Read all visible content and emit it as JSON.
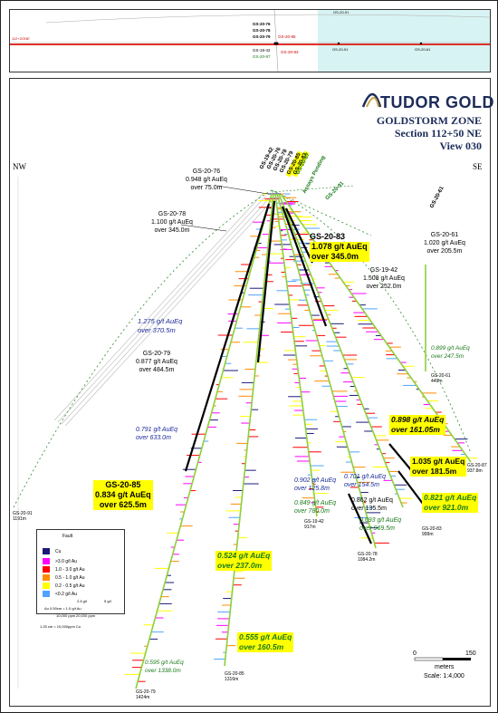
{
  "inset": {
    "zone_label": "112+ZONE",
    "top_label": "GS-20-91",
    "holes": [
      "GS-20-76",
      "GS-20-78",
      "GS-20-79",
      "GS-20-85",
      "GS-19-42",
      "GS-20-87",
      "GS-20-83",
      "GS-20-61"
    ],
    "right_holes": [
      "GS-20-91",
      "GS-20-61"
    ]
  },
  "company": "TUDOR GOLD",
  "zone": {
    "name": "GOLDSTORM ZONE",
    "section": "Section 112+50 NE",
    "view": "View 030"
  },
  "compass": {
    "left": "NW",
    "right": "SE"
  },
  "collar_labels": [
    "GS-19-42",
    "GS-20-76",
    "GS-20-78",
    "GS-20-79",
    "GS-20-85",
    "GS-20-83",
    "GS-20-87"
  ],
  "assays_pending": "Assays Pending",
  "hole_91_label": "GS-20-91",
  "intercepts": {
    "h76": {
      "hole": "GS-20-76",
      "grade": "0.948 g/t AuEq",
      "len": "over 75.0m"
    },
    "h78": {
      "hole": "GS-20-78",
      "grade": "1.100 g/t AuEq",
      "len": "over 345.0m"
    },
    "h83": {
      "hole": "GS-20-83",
      "grade": "1.078 g/t AuEq",
      "len": "over 345.0m"
    },
    "h61": {
      "hole": "GS-20-61",
      "grade": "1.020 g/t AuEq",
      "len": "over 205.5m"
    },
    "h42": {
      "hole": "GS-19-42",
      "grade": "1.508 g/t AuEq",
      "len": "over 252.0m"
    },
    "blue1": {
      "grade": "1.275 g/t AuEq",
      "len": "over 370.5m"
    },
    "h79": {
      "hole": "GS-20-79",
      "grade": "0.877 g/t AuEq",
      "len": "over 484.5m"
    },
    "green61": {
      "grade": "0.899 g/t AuEq",
      "len": "over 247.5m"
    },
    "blue2": {
      "grade": "0.791 g/t AuEq",
      "len": "over 633.0m"
    },
    "y1": {
      "grade": "0.898 g/t AuEq",
      "len": "over 161.05m"
    },
    "y2": {
      "grade": "1.035 g/t AuEq",
      "len": "over 181.5m"
    },
    "h85": {
      "hole": "GS-20-85",
      "grade": "0.834 g/t AuEq",
      "len": "over 625.5m"
    },
    "blue3": {
      "grade": "0.902 g/t AuEq",
      "len": "over 125.8m"
    },
    "blue4": {
      "grade": "0.701 g/t AuEq",
      "len": "over 154.5m"
    },
    "green1": {
      "grade": "0.849 g/t AuEq",
      "len": "over 780.0m"
    },
    "black1": {
      "grade": "0.862 g/t AuEq",
      "len": "over 135.5m"
    },
    "green2": {
      "grade": "0.693 g/t AuEq",
      "len": "over 969.5m"
    },
    "green3": {
      "grade": "0.821 g/t AuEq",
      "len": "over 921.0m"
    },
    "green4": {
      "grade": "0.524 g/t AuEq",
      "len": "over 237.0m"
    },
    "green5": {
      "grade": "0.555 g/t AuEq",
      "len": "over 160.5m"
    },
    "green6": {
      "grade": "0.595 g/t AuEq",
      "len": "over 1338.0m"
    }
  },
  "end_labels": {
    "e61": {
      "hole": "GS-20-61",
      "depth": "449m"
    },
    "e87": {
      "hole": "GS-20-87",
      "depth": "937.8m"
    },
    "e91": {
      "hole": "GS-20-91",
      "depth": "1191m"
    },
    "e42": {
      "hole": "GS-19-42",
      "depth": "917m"
    },
    "e83": {
      "hole": "GS-20-83",
      "depth": "999m"
    },
    "e78": {
      "hole": "GS-20-78",
      "depth": "1084.2m"
    },
    "e85": {
      "hole": "GS-20-85",
      "depth": "1316m"
    },
    "e79": {
      "hole": "GS-20-79",
      "depth": "1424m"
    }
  },
  "legend": {
    "fault": "Fault",
    "cu": "Cu",
    "items": [
      {
        "label": ">3.0 g/t Au",
        "color": "#ff00ff"
      },
      {
        "label": "1.0 - 3.0 g/t Au",
        "color": "#ff0000"
      },
      {
        "label": "0.5 - 1.0 g/t Au",
        "color": "#ff8c00"
      },
      {
        "label": "0.2 - 0.5 g/t Au",
        "color": "#ffff00"
      },
      {
        "label": "<0.2 g/t Au",
        "color": "#4fa3ff"
      }
    ],
    "cu_color": "#1a1a7a",
    "scale_au": "2.5 g/t",
    "scale_au2": "5 g/t",
    "au_note": "Au 0.50cm = 1.0 g/t Au",
    "cu_ppm1": "10,000 ppm",
    "cu_ppm2": "20,000 ppm",
    "cu_note": "1.25 cm = 10,000ppm Cu"
  },
  "scale": {
    "zero": "0",
    "max": "150",
    "unit": "meters",
    "ratio": "Scale: 1:4,000"
  }
}
